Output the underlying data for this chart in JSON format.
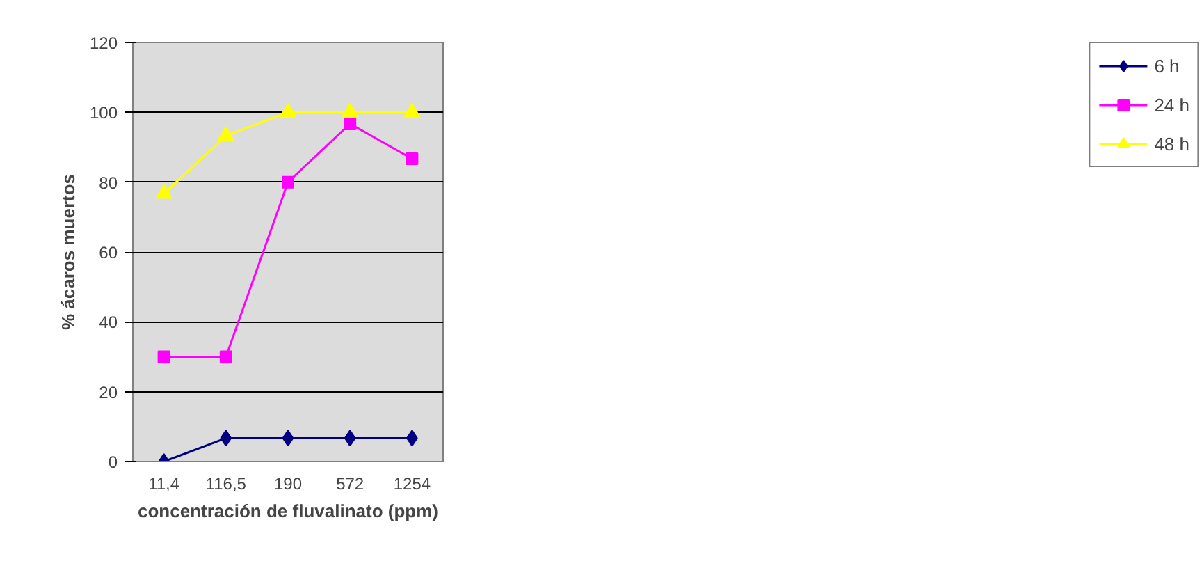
{
  "chart_data": {
    "type": "line",
    "xlabel": "concentración de fluvalinato (ppm)",
    "ylabel": "% ácaros muertos",
    "categories": [
      "11,4",
      "116,5",
      "190",
      "572",
      "1254"
    ],
    "ylim": [
      0,
      120
    ],
    "yticks": [
      0,
      20,
      40,
      60,
      80,
      100,
      120
    ],
    "grid": "y",
    "legend": "right",
    "series": [
      {
        "name": "6 h",
        "color": "#000080",
        "marker": "diamond",
        "values": [
          0,
          6.7,
          6.7,
          6.7,
          6.7
        ]
      },
      {
        "name": "24 h",
        "color": "#ff00ff",
        "marker": "square",
        "values": [
          30,
          30,
          80,
          96.7,
          86.7
        ]
      },
      {
        "name": "48 h",
        "color": "#ffff00",
        "marker": "triangle",
        "values": [
          76.7,
          93.3,
          100,
          100,
          100
        ]
      }
    ]
  }
}
